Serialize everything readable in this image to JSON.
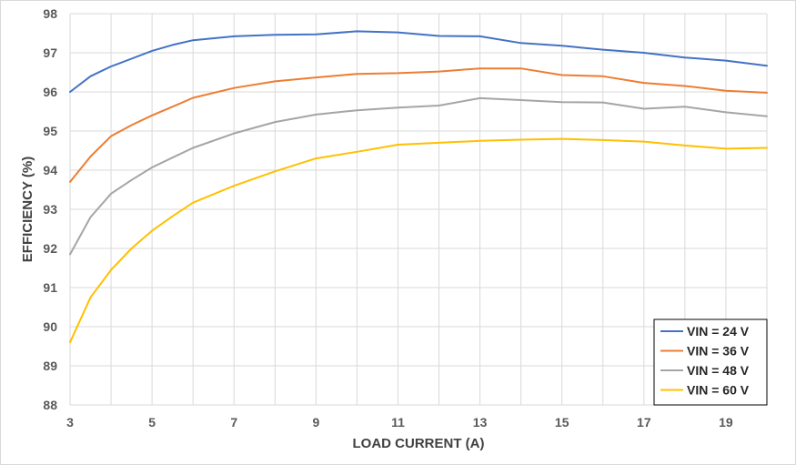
{
  "chart_data": {
    "type": "line",
    "title": "",
    "xlabel": "LOAD CURRENT (A)",
    "ylabel": "EFFICIENCY (%)",
    "xlim": [
      3,
      20
    ],
    "ylim": [
      88,
      98
    ],
    "xticks": [
      3,
      5,
      7,
      9,
      11,
      13,
      15,
      17,
      19
    ],
    "yticks": [
      88,
      89,
      90,
      91,
      92,
      93,
      94,
      95,
      96,
      97,
      98
    ],
    "grid": true,
    "legend_position": "bottom-right",
    "series": [
      {
        "name": "VIN = 24 V",
        "color": "#4472C4",
        "x": [
          3,
          3.5,
          4,
          4.5,
          5,
          5.5,
          6,
          7,
          8,
          9,
          10,
          11,
          12,
          13,
          14,
          15,
          16,
          17,
          18,
          19,
          20
        ],
        "y": [
          96.0,
          96.4,
          96.65,
          96.85,
          97.05,
          97.2,
          97.32,
          97.42,
          97.46,
          97.47,
          97.55,
          97.52,
          97.43,
          97.42,
          97.25,
          97.18,
          97.08,
          97.0,
          96.88,
          96.8,
          96.67
        ]
      },
      {
        "name": "VIN = 36 V",
        "color": "#ED7D31",
        "x": [
          3,
          3.5,
          4,
          4.5,
          5,
          5.5,
          6,
          7,
          8,
          9,
          10,
          11,
          12,
          13,
          14,
          15,
          16,
          17,
          18,
          19,
          20
        ],
        "y": [
          93.7,
          94.35,
          94.87,
          95.15,
          95.4,
          95.62,
          95.85,
          96.1,
          96.27,
          96.37,
          96.46,
          96.48,
          96.52,
          96.6,
          96.6,
          96.43,
          96.4,
          96.23,
          96.15,
          96.03,
          95.98
        ]
      },
      {
        "name": "VIN = 48 V",
        "color": "#A5A5A5",
        "x": [
          3,
          3.5,
          4,
          4.5,
          5,
          5.5,
          6,
          7,
          8,
          9,
          10,
          11,
          12,
          13,
          14,
          15,
          16,
          17,
          18,
          19,
          20
        ],
        "y": [
          91.85,
          92.8,
          93.4,
          93.75,
          94.07,
          94.32,
          94.57,
          94.94,
          95.23,
          95.42,
          95.53,
          95.6,
          95.65,
          95.84,
          95.79,
          95.74,
          95.73,
          95.57,
          95.62,
          95.48,
          95.38
        ]
      },
      {
        "name": "VIN = 60 V",
        "color": "#FFC000",
        "x": [
          3,
          3.5,
          4,
          4.5,
          5,
          5.5,
          6,
          7,
          8,
          9,
          10,
          11,
          12,
          13,
          14,
          15,
          16,
          17,
          18,
          19,
          20
        ],
        "y": [
          89.6,
          90.75,
          91.45,
          92.0,
          92.45,
          92.82,
          93.17,
          93.6,
          93.97,
          94.3,
          94.47,
          94.65,
          94.7,
          94.75,
          94.78,
          94.8,
          94.77,
          94.73,
          94.63,
          94.55,
          94.57
        ]
      }
    ]
  }
}
